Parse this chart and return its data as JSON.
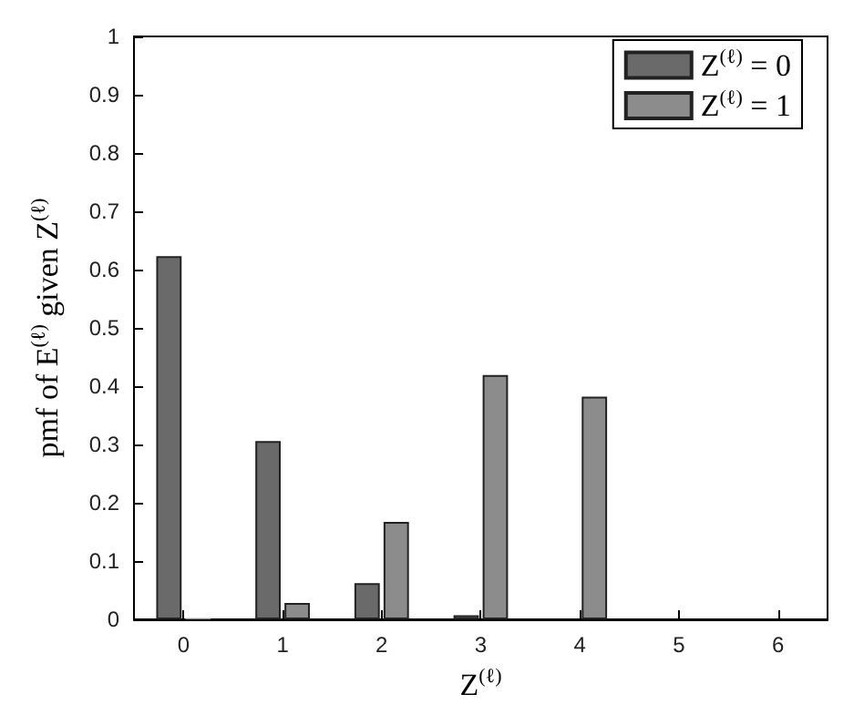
{
  "chart_data": {
    "type": "bar",
    "categories": [
      "0",
      "1",
      "2",
      "3",
      "4",
      "5",
      "6"
    ],
    "series": [
      {
        "name": "Z$^{(ℓ)}$ = 0",
        "color": "#6a6a6a",
        "values": [
          0.623,
          0.306,
          0.062,
          0.007,
          0,
          0,
          0
        ]
      },
      {
        "name": "Z$^{(ℓ)}$ = 1",
        "color": "#8c8c8c",
        "values": [
          0.002,
          0.028,
          0.167,
          0.419,
          0.382,
          0,
          0
        ]
      }
    ],
    "xlabel": "Z$^{(ℓ)}$",
    "ylabel": "pmf of E$^{(ℓ)}$ given Z$^{(ℓ)}$",
    "ylim": [
      0,
      1
    ],
    "yticks": [
      0,
      0.1,
      0.2,
      0.3,
      0.4,
      0.5,
      0.6,
      0.7,
      0.8,
      0.9,
      1
    ],
    "legend": "top right",
    "grid": false
  }
}
